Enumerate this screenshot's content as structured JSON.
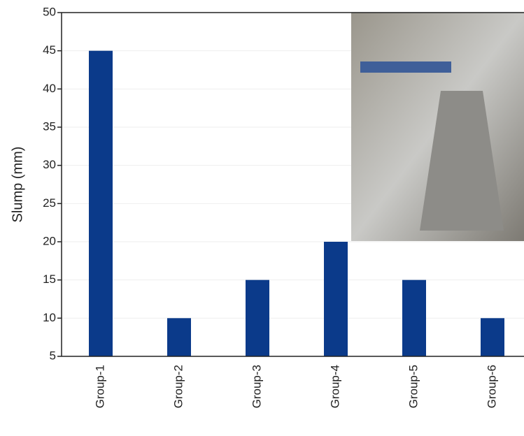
{
  "chart_data": {
    "type": "bar",
    "y_label": "Slump (mm)",
    "categories": [
      "Group-1",
      "Group-2",
      "Group-3",
      "Group-4",
      "Group-5",
      "Group-6"
    ],
    "values": [
      45,
      10,
      15,
      20,
      15,
      10
    ],
    "color": "#0b3a8a",
    "ylim": [
      5,
      50
    ],
    "yticks": [
      5,
      10,
      15,
      20,
      25,
      30,
      35,
      40,
      45,
      50
    ],
    "grid": true
  }
}
